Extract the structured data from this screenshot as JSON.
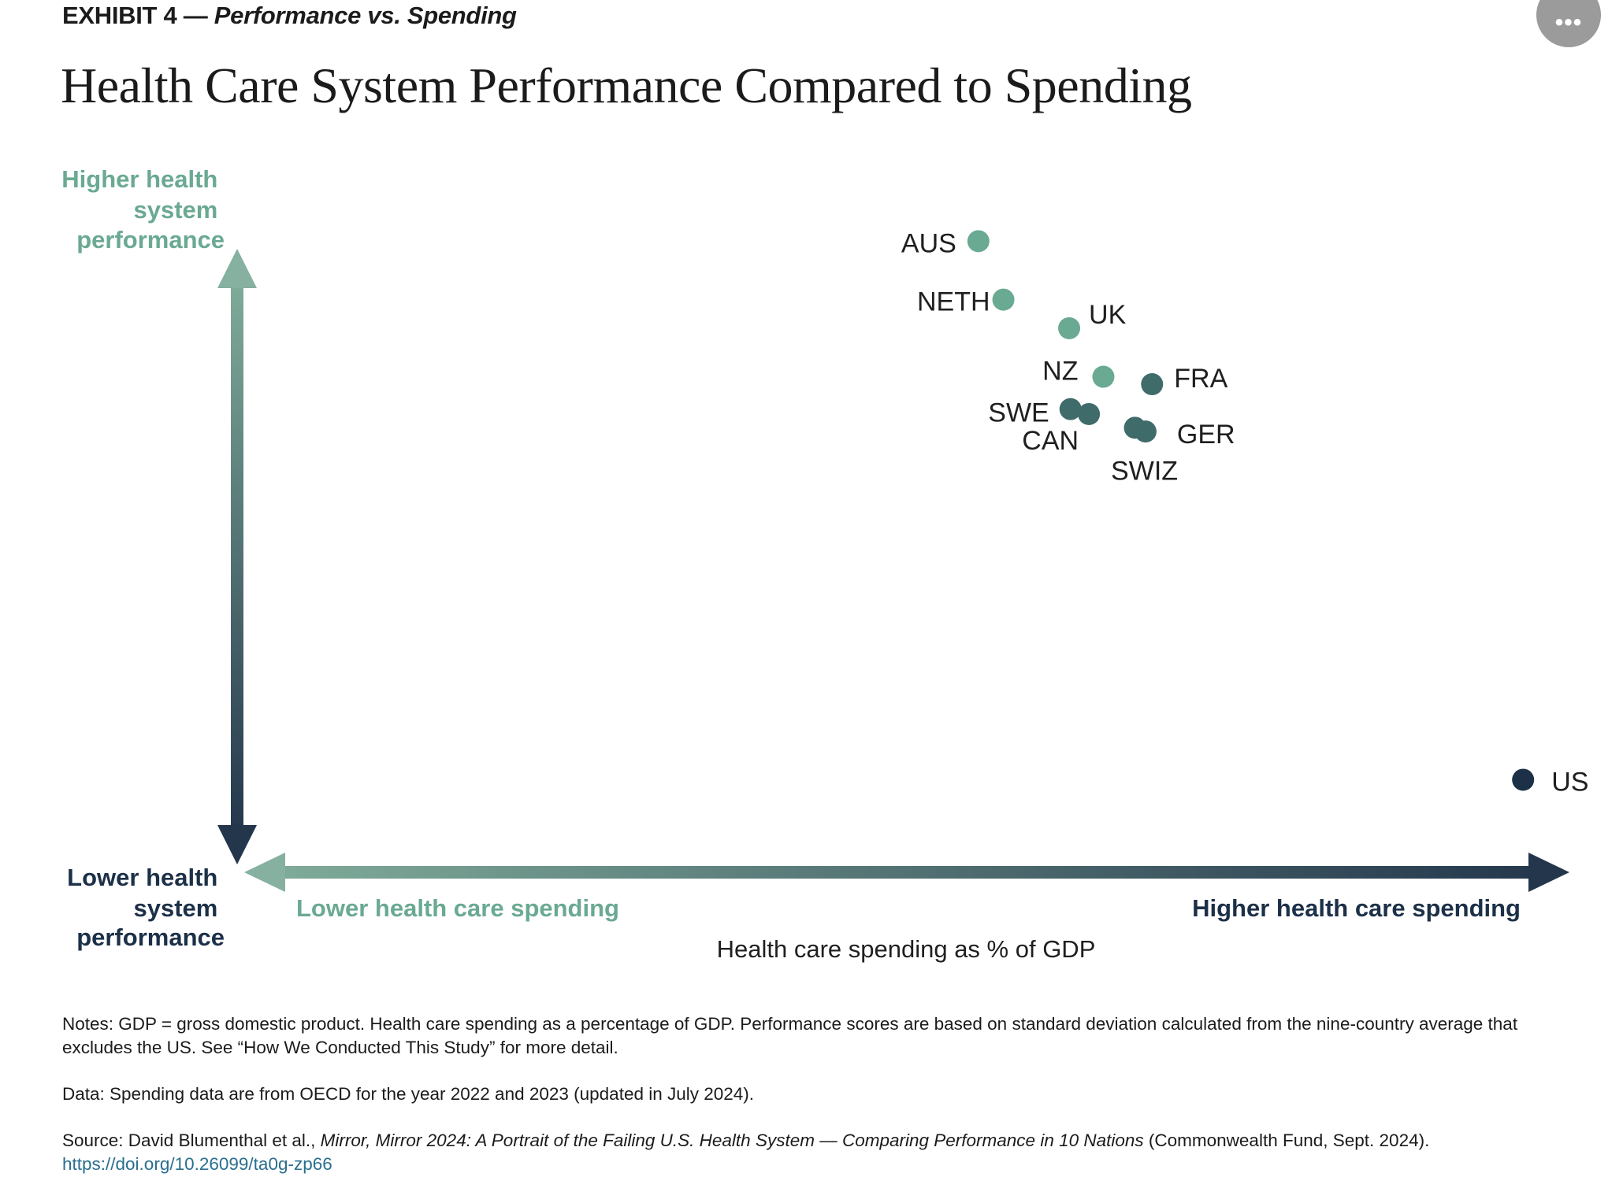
{
  "header": {
    "exhibit_label": "EXHIBIT 4 —",
    "exhibit_subtitle": "Performance vs. Spending",
    "title": "Health Care System Performance Compared to Spending",
    "more_button": "•••"
  },
  "chart_data": {
    "type": "scatter",
    "title": "Health Care System Performance Compared to Spending",
    "xlabel": "Health care spending as % of GDP",
    "x_low_label": "Lower health care spending",
    "x_high_label": "Higher health care spending",
    "y_high_label": [
      "Higher health",
      "system",
      "performance"
    ],
    "y_low_label": [
      "Lower health",
      "system",
      "performance"
    ],
    "x_range": [
      0,
      100
    ],
    "y_range": [
      0,
      100
    ],
    "grid": false,
    "legend": "none",
    "colors": {
      "light": "#6aa992",
      "mid": "#3f6b6a",
      "dark": "#1c3048"
    },
    "points": [
      {
        "label": "AUS",
        "x": 54.6,
        "y": 95.4,
        "color": "light"
      },
      {
        "label": "NETH",
        "x": 56.5,
        "y": 86.0,
        "color": "light"
      },
      {
        "label": "UK",
        "x": 61.5,
        "y": 81.4,
        "color": "light"
      },
      {
        "label": "NZ",
        "x": 64.1,
        "y": 73.6,
        "color": "light"
      },
      {
        "label": "FRA",
        "x": 67.8,
        "y": 72.4,
        "color": "mid"
      },
      {
        "label": "SWE",
        "x": 61.6,
        "y": 68.4,
        "color": "mid"
      },
      {
        "label": "CAN",
        "x": 63.0,
        "y": 67.6,
        "color": "mid"
      },
      {
        "label": "SWIZ",
        "x": 66.5,
        "y": 65.4,
        "color": "mid"
      },
      {
        "label": "GER",
        "x": 67.3,
        "y": 64.8,
        "color": "mid"
      },
      {
        "label": "US",
        "x": 96.0,
        "y": 8.8,
        "color": "dark"
      }
    ]
  },
  "notes": {
    "notes_text": "Notes: GDP = gross domestic product. Health care spending as a percentage of GDP. Performance scores are based on standard deviation calculated from the nine-country average that excludes the US. See “How We Conducted This Study” for more detail.",
    "data_text": "Data: Spending data are from OECD for the year 2022 and 2023 (updated in July 2024).",
    "source_prefix": "Source: David Blumenthal et al., ",
    "source_title": "Mirror, Mirror 2024: A Portrait of the Failing U.S. Health System — Comparing Performance in 10 Nations",
    "source_suffix": " (Commonwealth Fund, Sept. 2024).",
    "link": "https://doi.org/10.26099/ta0g-zp66"
  }
}
